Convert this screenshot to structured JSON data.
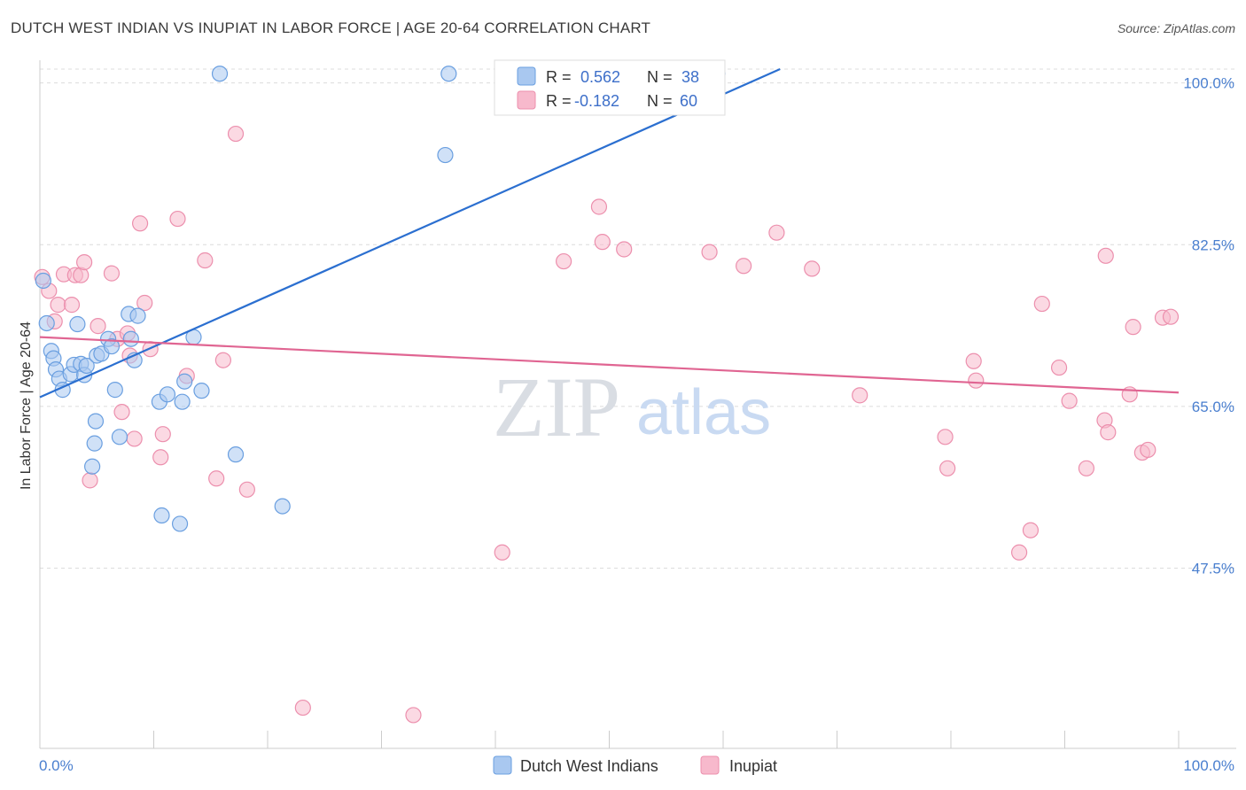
{
  "title": "DUTCH WEST INDIAN VS INUPIAT IN LABOR FORCE | AGE 20-64 CORRELATION CHART",
  "source": "Source: ZipAtlas.com",
  "watermark": {
    "zip": "ZIP",
    "atlas": "atlas"
  },
  "legend": {
    "r_label": "R =",
    "n_label": "N =",
    "rows": [
      {
        "r": "0.562",
        "n": "38",
        "color": "#a9c8f0"
      },
      {
        "r": "-0.182",
        "n": "60",
        "color": "#f7b9cc"
      }
    ]
  },
  "bottom_legend": [
    {
      "label": "Dutch West Indians",
      "color": "#a9c8f0"
    },
    {
      "label": "Inupiat",
      "color": "#f7b9cc"
    }
  ],
  "chart_data": {
    "type": "scatter",
    "xlabel": "",
    "ylabel": "In Labor Force | Age 20-64",
    "xlim": [
      0,
      100
    ],
    "ylim": [
      28,
      101.5
    ],
    "x_tick_labels": [
      "0.0%",
      "100.0%"
    ],
    "y_ticks": [
      {
        "value": 100.0,
        "label": "100.0%"
      },
      {
        "value": 82.5,
        "label": "82.5%"
      },
      {
        "value": 65.0,
        "label": "65.0%"
      },
      {
        "value": 47.5,
        "label": "47.5%"
      }
    ],
    "grid": true,
    "series": [
      {
        "name": "Dutch West Indians",
        "color": "#a9c8f0",
        "stroke": "#6a9fe0",
        "trend_color": "#2b6fd0",
        "trend": {
          "x": [
            0,
            65
          ],
          "y": [
            66.0,
            101.5
          ]
        },
        "points": [
          [
            0.3,
            78.6
          ],
          [
            0.6,
            74.0
          ],
          [
            1.0,
            71.0
          ],
          [
            1.2,
            70.2
          ],
          [
            1.4,
            69.0
          ],
          [
            1.7,
            68.0
          ],
          [
            2.0,
            66.8
          ],
          [
            2.7,
            68.5
          ],
          [
            3.0,
            69.5
          ],
          [
            3.3,
            73.9
          ],
          [
            3.6,
            69.6
          ],
          [
            3.9,
            68.4
          ],
          [
            4.1,
            69.4
          ],
          [
            4.6,
            58.5
          ],
          [
            4.8,
            61.0
          ],
          [
            4.9,
            63.4
          ],
          [
            5.0,
            70.5
          ],
          [
            5.4,
            70.7
          ],
          [
            6.0,
            72.3
          ],
          [
            6.3,
            71.5
          ],
          [
            6.6,
            66.8
          ],
          [
            7.0,
            61.7
          ],
          [
            7.8,
            75.0
          ],
          [
            8.0,
            72.3
          ],
          [
            8.3,
            70.0
          ],
          [
            8.6,
            74.8
          ],
          [
            10.5,
            65.5
          ],
          [
            10.7,
            53.2
          ],
          [
            11.2,
            66.3
          ],
          [
            12.3,
            52.3
          ],
          [
            12.5,
            65.5
          ],
          [
            12.7,
            67.7
          ],
          [
            13.5,
            72.5
          ],
          [
            14.2,
            66.7
          ],
          [
            15.8,
            101.0
          ],
          [
            17.2,
            59.8
          ],
          [
            21.3,
            54.2
          ],
          [
            35.6,
            92.2
          ],
          [
            35.9,
            101.0
          ],
          [
            59.5,
            101.0
          ]
        ]
      },
      {
        "name": "Inupiat",
        "color": "#f7b9cc",
        "stroke": "#ec8fad",
        "trend_color": "#e06592",
        "trend": {
          "x": [
            0,
            100
          ],
          "y": [
            72.5,
            66.5
          ]
        },
        "points": [
          [
            0.2,
            79.0
          ],
          [
            0.8,
            77.5
          ],
          [
            1.3,
            74.2
          ],
          [
            1.6,
            76.0
          ],
          [
            2.1,
            79.3
          ],
          [
            2.8,
            76.0
          ],
          [
            3.1,
            79.2
          ],
          [
            3.6,
            79.2
          ],
          [
            3.9,
            80.6
          ],
          [
            4.4,
            57.0
          ],
          [
            5.1,
            73.7
          ],
          [
            6.3,
            79.4
          ],
          [
            6.8,
            72.3
          ],
          [
            7.2,
            64.4
          ],
          [
            7.7,
            72.9
          ],
          [
            7.9,
            70.5
          ],
          [
            8.3,
            61.5
          ],
          [
            8.8,
            84.8
          ],
          [
            9.2,
            76.2
          ],
          [
            9.7,
            71.2
          ],
          [
            10.6,
            59.5
          ],
          [
            10.8,
            62.0
          ],
          [
            12.1,
            85.3
          ],
          [
            12.9,
            68.3
          ],
          [
            14.5,
            80.8
          ],
          [
            15.5,
            57.2
          ],
          [
            16.1,
            70.0
          ],
          [
            17.2,
            94.5
          ],
          [
            18.2,
            56.0
          ],
          [
            23.1,
            32.4
          ],
          [
            32.8,
            31.6
          ],
          [
            40.6,
            49.2
          ],
          [
            46.0,
            80.7
          ],
          [
            49.1,
            86.6
          ],
          [
            49.4,
            82.8
          ],
          [
            51.3,
            82.0
          ],
          [
            58.8,
            81.7
          ],
          [
            61.8,
            80.2
          ],
          [
            64.7,
            83.8
          ],
          [
            67.8,
            79.9
          ],
          [
            72.0,
            66.2
          ],
          [
            79.5,
            61.7
          ],
          [
            79.7,
            58.3
          ],
          [
            82.0,
            69.9
          ],
          [
            82.2,
            67.8
          ],
          [
            86.0,
            49.2
          ],
          [
            87.0,
            51.6
          ],
          [
            88.0,
            76.1
          ],
          [
            89.5,
            69.2
          ],
          [
            90.4,
            65.6
          ],
          [
            91.9,
            58.3
          ],
          [
            93.5,
            63.5
          ],
          [
            93.6,
            81.3
          ],
          [
            93.8,
            62.2
          ],
          [
            95.7,
            66.3
          ],
          [
            96.0,
            73.6
          ],
          [
            96.8,
            60.0
          ],
          [
            97.3,
            60.3
          ],
          [
            98.6,
            74.6
          ],
          [
            99.3,
            74.7
          ]
        ]
      }
    ]
  }
}
